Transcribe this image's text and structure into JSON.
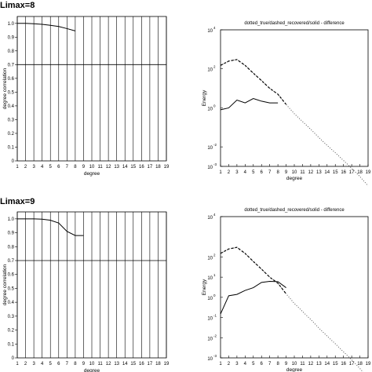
{
  "charts": [
    {
      "header": "Limax=8",
      "left": {
        "ylabel": "degree correlation",
        "xlabel": "degree",
        "xlim": [
          1,
          19
        ],
        "ylim": [
          0,
          1.05
        ],
        "yticks": [
          "0",
          "0.1",
          "0.2",
          "0.3",
          "0.4",
          "0.5",
          "0.6",
          "0.7",
          "0.8",
          "0.9",
          "1.0"
        ],
        "xticks": [
          "1",
          "2",
          "3",
          "4",
          "5",
          "6",
          "7",
          "8",
          "9",
          "10",
          "11",
          "12",
          "13",
          "14",
          "15",
          "16",
          "17",
          "18",
          "19"
        ],
        "ref_line": 0.7,
        "series": {
          "x": [
            1,
            2,
            3,
            4,
            5,
            6,
            7,
            8
          ],
          "y": [
            1.0,
            1.0,
            0.997,
            0.993,
            0.986,
            0.977,
            0.962,
            0.945
          ]
        }
      },
      "right": {
        "title": "dotted_true/dashed_recovered/solid - difference",
        "ylabel": "Energy",
        "xlabel": "degree",
        "xlim": [
          1,
          19
        ],
        "ylog": [
          -3,
          4
        ],
        "yticks": [
          {
            "base": "10",
            "exp": "4"
          },
          {
            "base": "10",
            "exp": "2"
          },
          {
            "base": "10",
            "exp": "0"
          },
          {
            "base": "10",
            "exp": "-2"
          },
          {
            "base": "10",
            "exp": "-3"
          }
        ],
        "xticks": [
          "1",
          "2",
          "3",
          "4",
          "5",
          "6",
          "7",
          "8",
          "9",
          "10",
          "11",
          "12",
          "13",
          "14",
          "15",
          "16",
          "17",
          "18",
          "19"
        ],
        "true_series": {
          "x": [
            1,
            2,
            3,
            4,
            5,
            6,
            7,
            8,
            9,
            10,
            11,
            12,
            13,
            14,
            15,
            16,
            17,
            18,
            19
          ],
          "y": [
            150,
            250,
            300,
            150,
            60,
            25,
            10,
            5,
            1.5,
            0.5,
            0.2,
            0.08,
            0.03,
            0.012,
            0.005,
            0.002,
            0.0008,
            0.0003,
            0.0001
          ]
        },
        "recovered_series": {
          "x": [
            1,
            2,
            3,
            4,
            5,
            6,
            7,
            8,
            9
          ],
          "y": [
            150,
            250,
            300,
            150,
            60,
            25,
            10,
            5,
            1.5
          ]
        },
        "difference_series": {
          "x": [
            1,
            2,
            3,
            4,
            5,
            6,
            7,
            8
          ],
          "y": [
            0.8,
            1.0,
            2.5,
            1.8,
            3.0,
            2.2,
            1.8,
            1.8
          ]
        }
      }
    },
    {
      "header": "Limax=9",
      "left": {
        "ylabel": "degree correlation",
        "xlabel": "degree",
        "xlim": [
          1,
          19
        ],
        "ylim": [
          0,
          1.05
        ],
        "yticks": [
          "0",
          "0.1",
          "0.2",
          "0.3",
          "0.4",
          "0.5",
          "0.6",
          "0.7",
          "0.8",
          "0.9",
          "1.0"
        ],
        "xticks": [
          "1",
          "2",
          "3",
          "4",
          "5",
          "6",
          "7",
          "8",
          "9",
          "10",
          "11",
          "12",
          "13",
          "14",
          "15",
          "16",
          "17",
          "18",
          "19"
        ],
        "ref_line": 0.7,
        "series": {
          "x": [
            1,
            2,
            3,
            4,
            5,
            6,
            7,
            8,
            9
          ],
          "y": [
            1.0,
            1.0,
            1.0,
            0.998,
            0.99,
            0.97,
            0.91,
            0.88,
            0.88
          ]
        }
      },
      "right": {
        "title": "dotted_true/dashed_recovered/solid - difference",
        "ylabel": "Energy",
        "xlabel": "degree",
        "xlim": [
          1,
          19
        ],
        "ylog": [
          -3,
          4
        ],
        "yticks": [
          {
            "base": "10",
            "exp": "4"
          },
          {
            "base": "10",
            "exp": "2"
          },
          {
            "base": "10",
            "exp": "1"
          },
          {
            "base": "10",
            "exp": "0"
          },
          {
            "base": "10",
            "exp": "-1"
          },
          {
            "base": "10",
            "exp": "-2"
          },
          {
            "base": "10",
            "exp": "-3"
          }
        ],
        "xticks": [
          "1",
          "2",
          "3",
          "4",
          "5",
          "6",
          "7",
          "8",
          "9",
          "10",
          "11",
          "12",
          "13",
          "14",
          "15",
          "16",
          "17",
          "18",
          "19"
        ],
        "true_series": {
          "x": [
            1,
            2,
            3,
            4,
            5,
            6,
            7,
            8,
            9,
            10,
            11,
            12,
            13,
            14,
            15,
            16,
            17,
            18,
            19
          ],
          "y": [
            150,
            250,
            300,
            150,
            60,
            25,
            10,
            5,
            1.5,
            0.5,
            0.2,
            0.08,
            0.03,
            0.012,
            0.005,
            0.002,
            0.0008,
            0.0003,
            0.0001
          ]
        },
        "recovered_series": {
          "x": [
            1,
            2,
            3,
            4,
            5,
            6,
            7,
            8,
            9
          ],
          "y": [
            150,
            250,
            300,
            150,
            60,
            25,
            10,
            5,
            1.5
          ]
        },
        "difference_series": {
          "x": [
            1,
            2,
            3,
            4,
            5,
            6,
            7,
            8,
            9
          ],
          "y": [
            0.15,
            1.2,
            1.4,
            2.2,
            3.0,
            5.5,
            6.2,
            6.0,
            3.0
          ]
        }
      }
    }
  ]
}
